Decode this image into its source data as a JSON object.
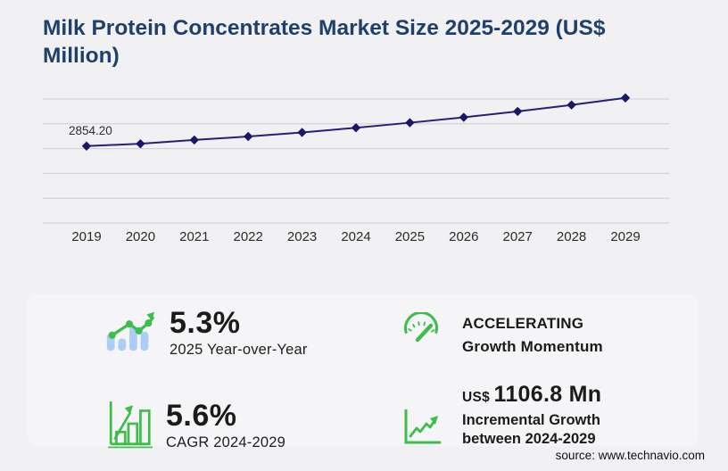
{
  "title_lines": [
    "Milk Protein Concentrates Market Size 2025-2029 (US$",
    "Million)"
  ],
  "chart_data": {
    "type": "line",
    "title": "Milk Protein Concentrates Market Size 2025-2029 (US$ Million)",
    "x": [
      "2019",
      "2020",
      "2021",
      "2022",
      "2023",
      "2024",
      "2025",
      "2026",
      "2027",
      "2028",
      "2029"
    ],
    "values": [
      2854.2,
      2940,
      3080,
      3210,
      3360,
      3534,
      3721,
      3920,
      4140,
      4380,
      4641
    ],
    "series_name": "Market size (US$ Million)",
    "data_label": {
      "x": "2019",
      "text": "2854.20"
    },
    "xlabel": "",
    "ylabel": "",
    "ylim": [
      0,
      4600
    ],
    "gridlines": true,
    "legend": "none",
    "line_color": "#262077",
    "marker_color": "#1c1668",
    "marker_shape": "diamond"
  },
  "stats": {
    "yoy": {
      "value": "5.3%",
      "label": "2025 Year-over-Year"
    },
    "momentum": {
      "line1": "ACCELERATING",
      "line2": "Growth Momentum"
    },
    "cagr": {
      "value": "5.6%",
      "label": "CAGR 2024-2029"
    },
    "incremental": {
      "currency": "US$",
      "value": "1106.8 Mn",
      "line1": "Incremental Growth",
      "line2": "between 2024-2029"
    }
  },
  "icons": {
    "yoy": "bar-chart-trend-icon",
    "momentum": "speedometer-icon",
    "cagr": "outlined-bar-growth-icon",
    "incremental": "axis-trend-arrow-icon"
  },
  "source": "source: www.technavio.com",
  "colors": {
    "background": "#f1f1f3",
    "panel": "#f5f4f6",
    "title_navy": "#20406c",
    "line_navy": "#262077",
    "marker_navy": "#1c1668",
    "gridline_gray": "#cdced2",
    "accent_green": "#3dbd4c",
    "bar_blue": "#accdf6",
    "text_black": "#1b1b1b"
  }
}
